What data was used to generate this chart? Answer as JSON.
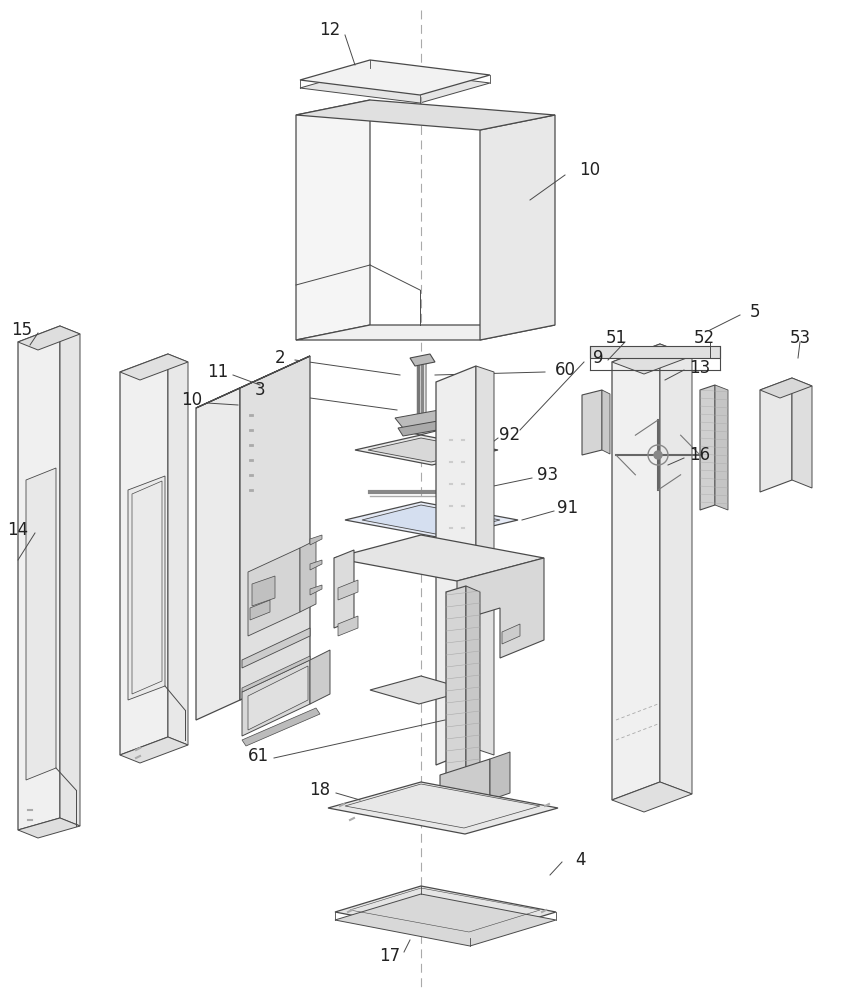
{
  "bg_color": "#ffffff",
  "line_color": "#4a4a4a",
  "fig_width": 8.42,
  "fig_height": 10.0,
  "dpi": 100
}
